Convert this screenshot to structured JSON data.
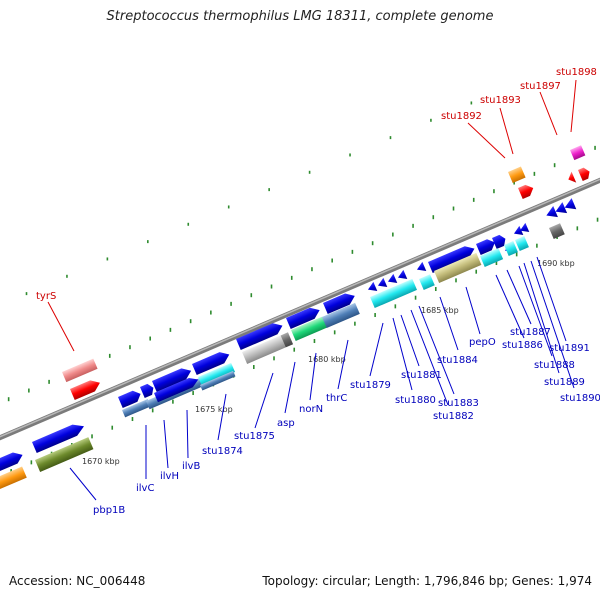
{
  "title": "Streptococcus thermophilus LMG 18311, complete genome",
  "footer": {
    "accession": "Accession: NC_006448",
    "summary": "Topology: circular; Length: 1,796,846 bp; Genes: 1,974"
  },
  "scale_labels": [
    "1670 kbp",
    "1675 kbp",
    "1680 kbp",
    "1685 kbp",
    "1690 kbp"
  ],
  "colors": {
    "forward_gene": "#0000ee",
    "rna_highlight": "#ff0000",
    "rna_label": "#cc0000",
    "gene_label": "#0000bb",
    "backbone": "#888888",
    "tick": "#2e8b2e"
  },
  "red_labels": [
    "tyrS",
    "stu1892",
    "stu1893",
    "stu1897",
    "stu1898"
  ],
  "blue_labels": [
    "pbp1B",
    "ilvC",
    "ilvH",
    "ilvB",
    "stu1874",
    "stu1875",
    "asp",
    "norN",
    "thrC",
    "stu1879",
    "stu1880",
    "stu1881",
    "stu1882",
    "stu1883",
    "stu1884",
    "pepO",
    "stu1886",
    "stu1887",
    "stu1888",
    "stu1889",
    "stu1890",
    "stu1891"
  ]
}
